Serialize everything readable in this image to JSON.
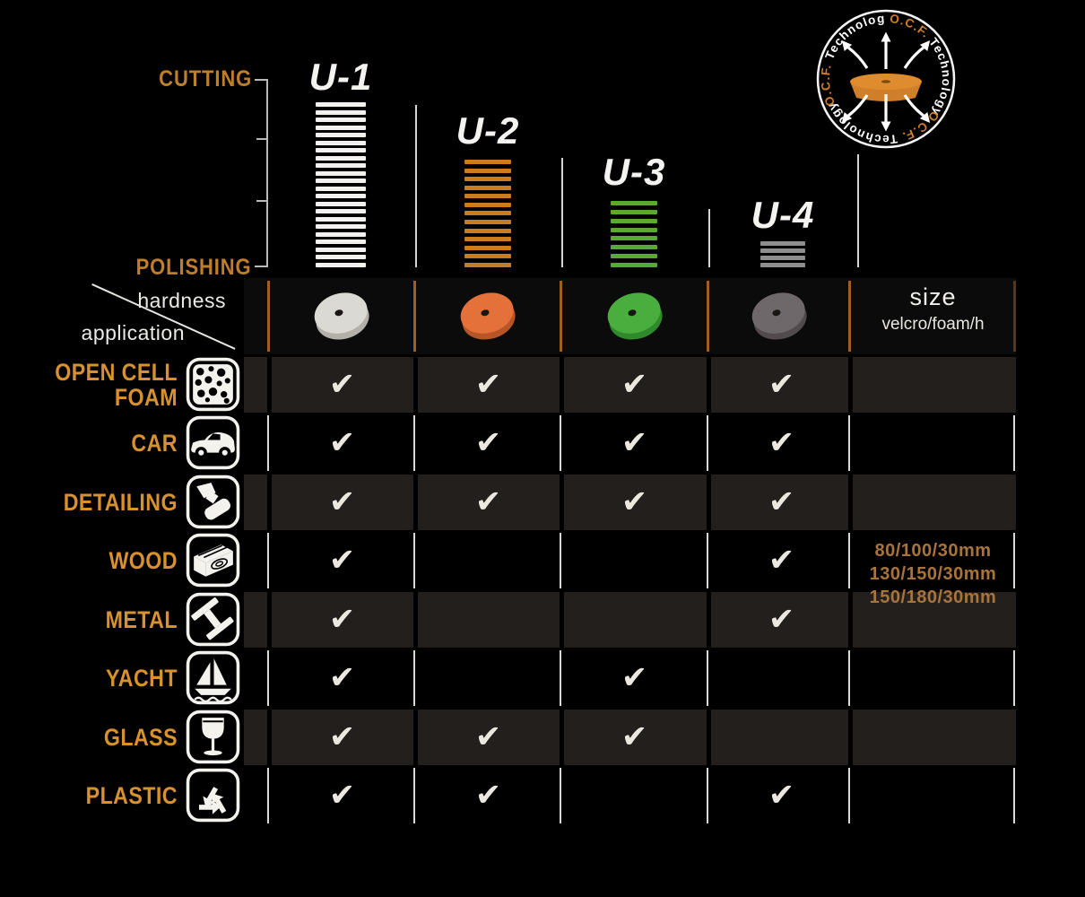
{
  "scale": {
    "cutting": "CUTTING",
    "polishing": "POLISHING"
  },
  "axis": {
    "hardness": "hardness",
    "application": "application"
  },
  "logo": {
    "ocf": "O.C.F.",
    "tech": "Technology"
  },
  "header": {
    "size_title": "size",
    "size_sub": "velcro/foam/h"
  },
  "columns": [
    {
      "name": "U-1",
      "stripes": 22,
      "stripe_color": "#f2f1ee",
      "pad_color": "#dbd9d4",
      "pad_side": "#b3b0aa"
    },
    {
      "name": "U-2",
      "stripes": 13,
      "stripe_color": "#c97d1e",
      "pad_color": "#e5713a",
      "pad_side": "#b75526"
    },
    {
      "name": "U-3",
      "stripes": 8,
      "stripe_color": "#5aa930",
      "pad_color": "#49ae3e",
      "pad_side": "#2f8a2c"
    },
    {
      "name": "U-4",
      "stripes": 4,
      "stripe_color": "#8f8f8f",
      "pad_color": "#6f686b",
      "pad_side": "#514b4e"
    }
  ],
  "rows": [
    {
      "label": "OPEN CELL\nFOAM",
      "icon": "open-cell-foam-icon",
      "marks": [
        "✔",
        "✔",
        "✔",
        "✔"
      ]
    },
    {
      "label": "CAR",
      "icon": "car-icon",
      "marks": [
        "✔",
        "✔",
        "✔",
        "✔"
      ]
    },
    {
      "label": "DETAILING",
      "icon": "detailing-icon",
      "marks": [
        "✔",
        "✔",
        "✔",
        "✔"
      ]
    },
    {
      "label": "WOOD",
      "icon": "wood-icon",
      "marks": [
        "✔",
        "",
        "",
        "✔"
      ]
    },
    {
      "label": "METAL",
      "icon": "metal-icon",
      "marks": [
        "✔",
        "",
        "",
        "✔"
      ]
    },
    {
      "label": "YACHT",
      "icon": "yacht-icon",
      "marks": [
        "✔",
        "",
        "✔",
        ""
      ]
    },
    {
      "label": "GLASS",
      "icon": "glass-icon",
      "marks": [
        "✔",
        "✔",
        "✔",
        ""
      ]
    },
    {
      "label": "PLASTIC",
      "icon": "plastic-icon",
      "marks": [
        "✔",
        "✔",
        "",
        "✔"
      ]
    }
  ],
  "sizes": [
    "80/100/30mm",
    "130/150/30mm",
    "150/180/30mm"
  ],
  "colors": {
    "accent_orange": "#d8912f",
    "stripe_orange": "#c97d1e",
    "stripe_green": "#5aa930",
    "stripe_gray": "#8f8f8f",
    "dark_row_bg": "#221f1d",
    "check_white": "#ece8e0"
  },
  "chart_data": {
    "type": "table",
    "title": "O.C.F. Technology polishing pad comparison",
    "columns": [
      "U-1",
      "U-2",
      "U-3",
      "U-4"
    ],
    "hardness_scale": {
      "top": "CUTTING",
      "bottom": "POLISHING",
      "stripe_levels": {
        "U-1": 22,
        "U-2": 13,
        "U-3": 8,
        "U-4": 4
      }
    },
    "applications": [
      {
        "name": "OPEN CELL FOAM",
        "values": [
          true,
          true,
          true,
          true
        ]
      },
      {
        "name": "CAR",
        "values": [
          true,
          true,
          true,
          true
        ]
      },
      {
        "name": "DETAILING",
        "values": [
          true,
          true,
          true,
          true
        ]
      },
      {
        "name": "WOOD",
        "values": [
          true,
          false,
          false,
          true
        ]
      },
      {
        "name": "METAL",
        "values": [
          true,
          false,
          false,
          true
        ]
      },
      {
        "name": "YACHT",
        "values": [
          true,
          false,
          true,
          false
        ]
      },
      {
        "name": "GLASS",
        "values": [
          true,
          true,
          true,
          false
        ]
      },
      {
        "name": "PLASTIC",
        "values": [
          true,
          true,
          false,
          true
        ]
      }
    ],
    "size_column": {
      "header": "size",
      "sub": "velcro/foam/h",
      "values": [
        "80/100/30mm",
        "130/150/30mm",
        "150/180/30mm"
      ]
    }
  }
}
